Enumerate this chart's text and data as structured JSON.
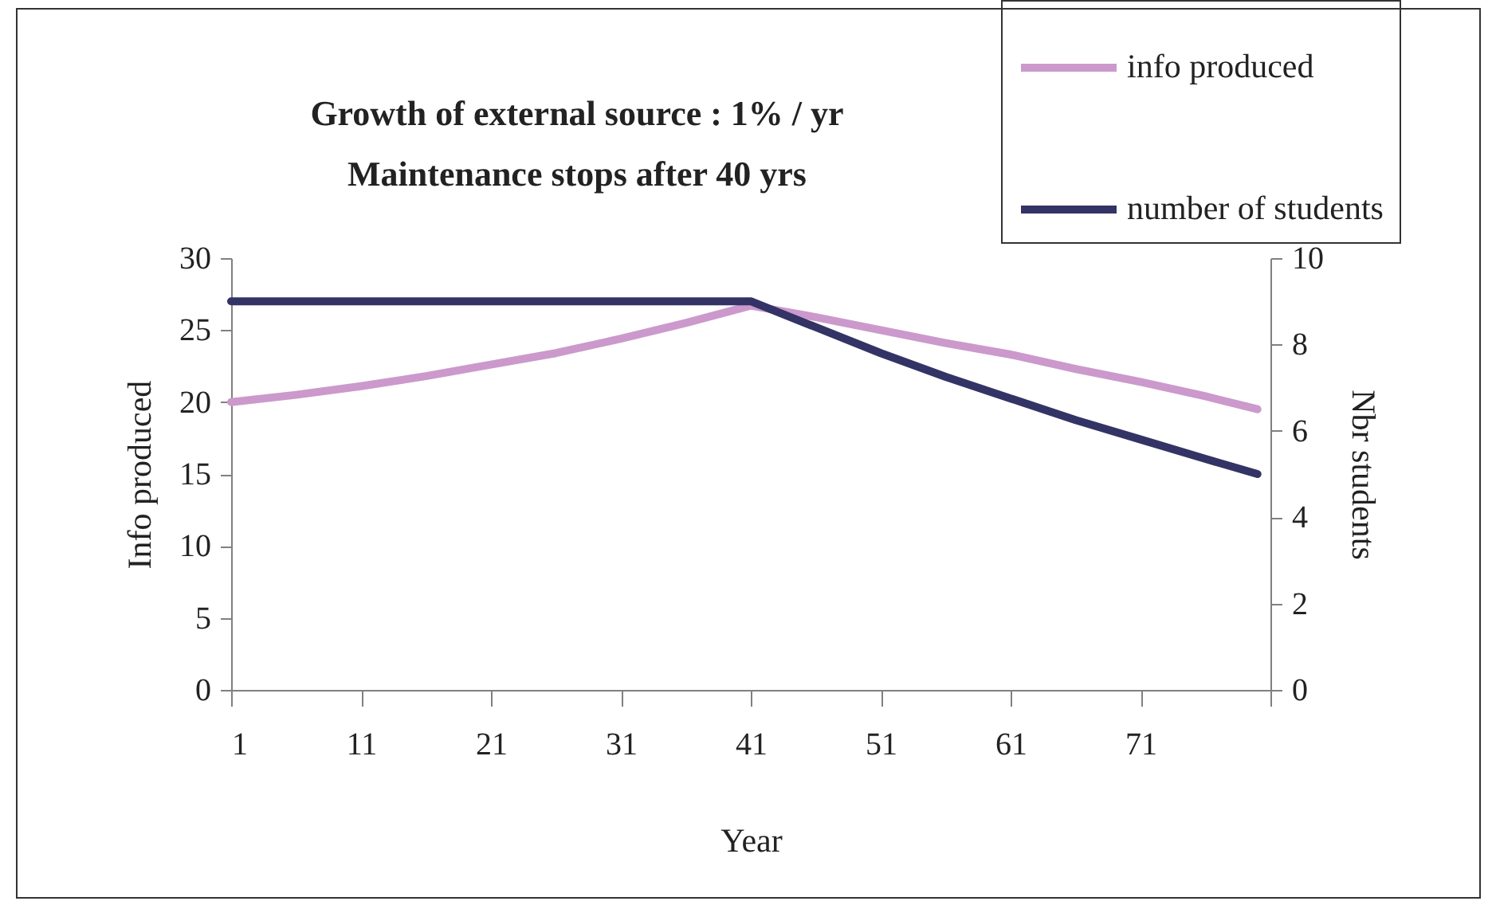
{
  "chart_data": {
    "type": "line",
    "title": [
      "Growth of external source : 1% / yr",
      "Maintenance stops after 40 yrs"
    ],
    "xlabel": "Year",
    "ylabel": "Info produced",
    "y2label": "Nbr students",
    "x": [
      1,
      6,
      11,
      16,
      21,
      26,
      31,
      36,
      41,
      46,
      51,
      56,
      61,
      66,
      71,
      76,
      80
    ],
    "series": [
      {
        "name": "info produced",
        "color": "#cc99cc",
        "values": [
          20,
          20.5,
          21.1,
          21.8,
          22.6,
          23.4,
          24.4,
          25.5,
          26.7,
          25.9,
          25.0,
          24.1,
          23.3,
          22.3,
          21.4,
          20.4,
          19.5
        ]
      },
      {
        "name": "number of students",
        "color": "#333366",
        "axis": "y2",
        "x": [
          1,
          41,
          46,
          51,
          56,
          61,
          66,
          71,
          76,
          80
        ],
        "values": [
          9,
          9,
          8.4,
          7.8,
          7.25,
          6.75,
          6.25,
          5.8,
          5.35,
          5.0
        ]
      }
    ],
    "xlim": [
      1,
      81
    ],
    "xticks": [
      1,
      11,
      21,
      31,
      41,
      51,
      61,
      71,
      {
        "value": 81,
        "label": null
      }
    ],
    "ylim": [
      0,
      30
    ],
    "yticks": [
      0,
      5,
      10,
      15,
      20,
      25,
      30
    ],
    "y2lim": [
      0,
      10
    ],
    "y2ticks": [
      0,
      2,
      4,
      6,
      8,
      10
    ],
    "grid": false,
    "legend": "top right",
    "marker": "none",
    "line_style": "solid"
  }
}
